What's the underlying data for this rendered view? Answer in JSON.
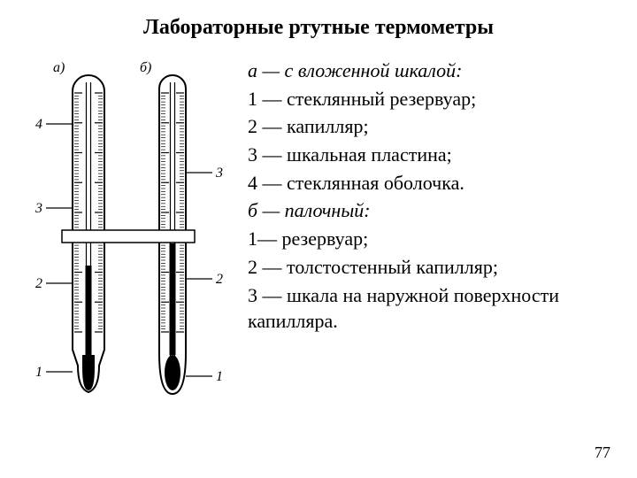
{
  "title": "Лабораторные ртутные термометры",
  "legend": {
    "a_header": "а — с вложенной шкалой:",
    "a_items": [
      "1 — стеклянный резервуар;",
      "2 — капилляр;",
      "3 — шкальная пластина;",
      "4 — стеклянная оболочка."
    ],
    "b_header": "б — палочный:",
    "b_items": [
      "1— резервуар;",
      "2 — толстостенный капилляр;",
      "3 — шкала на наружной поверхности   капилляра."
    ]
  },
  "pageNumber": "77",
  "diagram": {
    "labels": {
      "a": "а)",
      "b": "б)"
    },
    "callouts_a": [
      "4",
      "3",
      "2",
      "1"
    ],
    "callouts_b": [
      "3",
      "2",
      "1"
    ],
    "colors": {
      "stroke": "#000000",
      "fill": "#000000",
      "bg": "#ffffff"
    },
    "strokeWidth": 2,
    "tickCountMajor": 8,
    "tickCountMinor": 80
  }
}
